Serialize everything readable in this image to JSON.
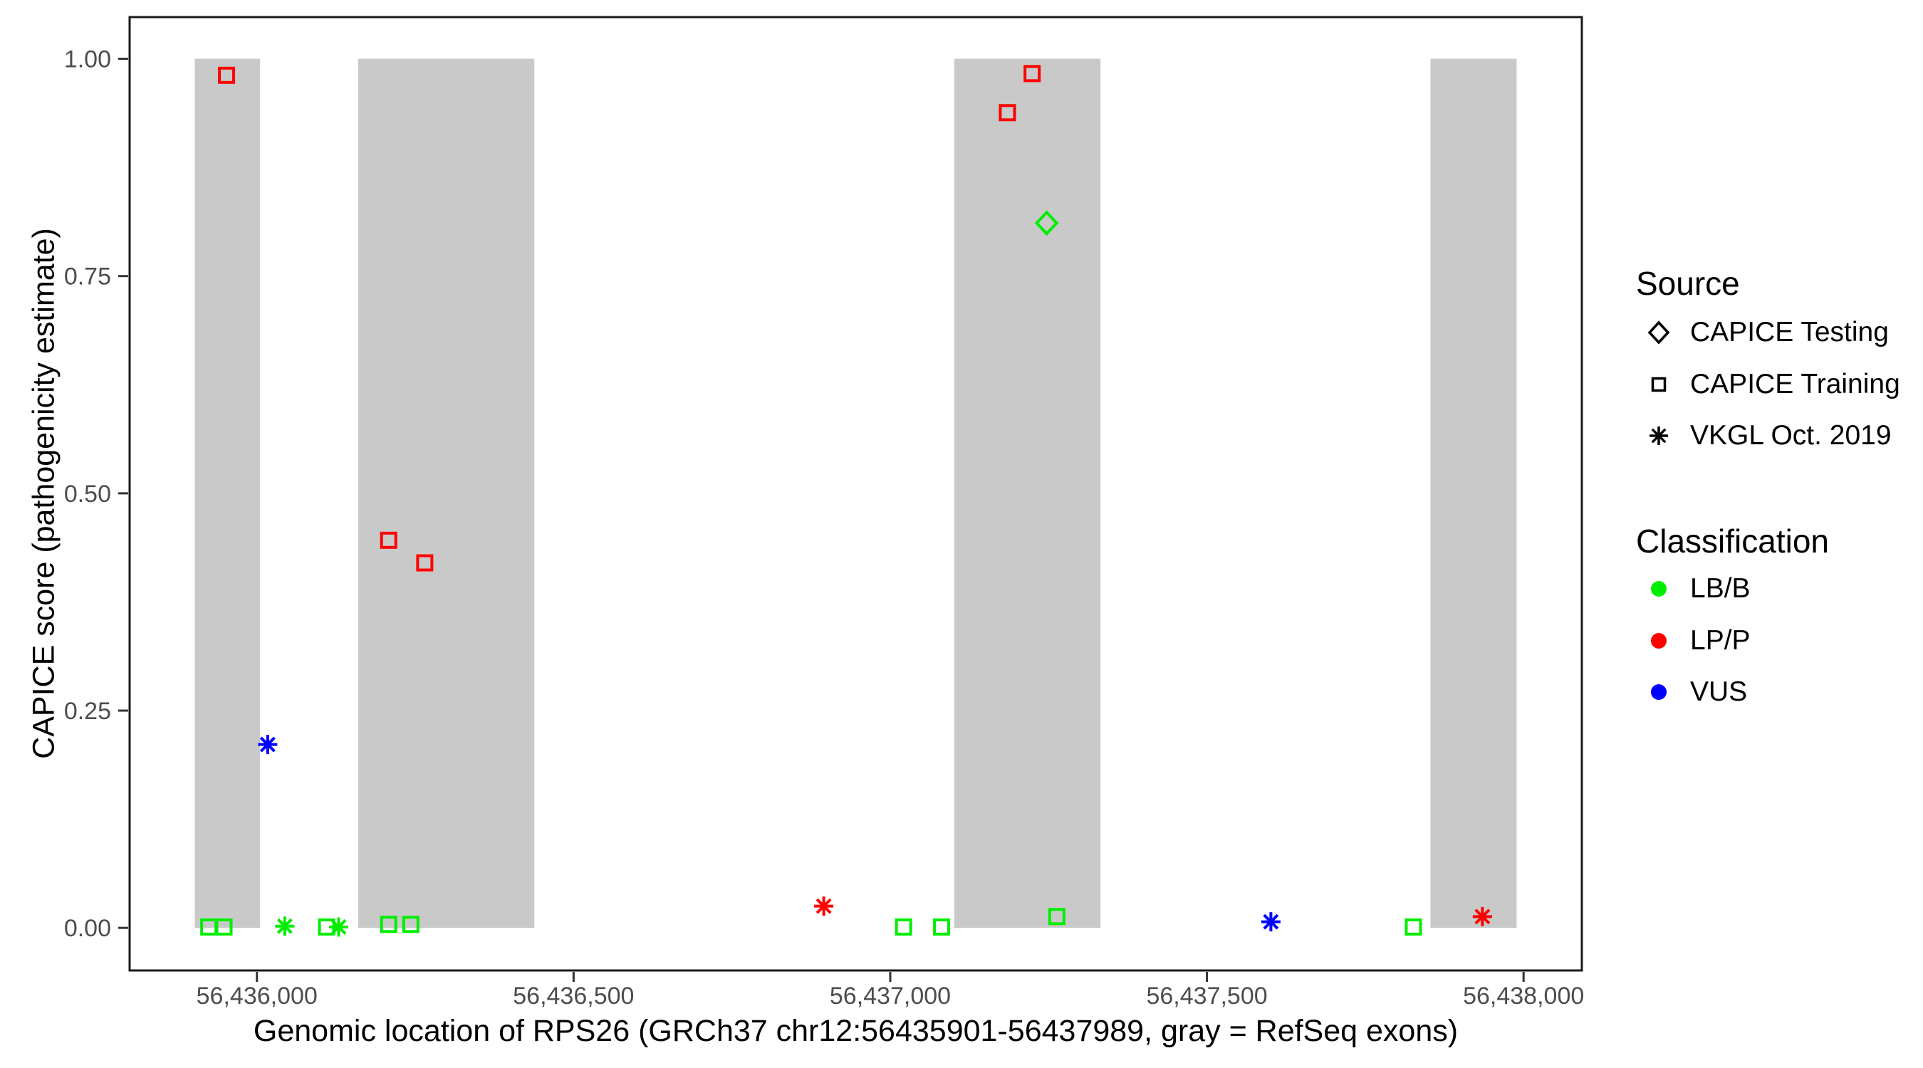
{
  "chart_data": {
    "type": "scatter",
    "title": "",
    "xlabel": "Genomic location of RPS26 (GRCh37 chr12:56435901-56437989, gray = RefSeq exons)",
    "ylabel": "CAPICE score (pathogenicity estimate)",
    "grid": "off",
    "legend_position": "right",
    "panel": {
      "border_color": "#1a1a1a",
      "border_width": 3,
      "background": "#ffffff"
    },
    "exon_color": "#c9c9c9",
    "tick_color": "#333333",
    "tick_label_color": "#4d4d4d",
    "x_axis": {
      "min": 56435799,
      "max": 56438092,
      "ticks": [
        {
          "value": 56436000,
          "label": "56,436,000"
        },
        {
          "value": 56436500,
          "label": "56,436,500"
        },
        {
          "value": 56437000,
          "label": "56,437,000"
        },
        {
          "value": 56437500,
          "label": "56,437,500"
        },
        {
          "value": 56438000,
          "label": "56,438,000"
        }
      ]
    },
    "y_axis": {
      "min": -0.049,
      "max": 1.048,
      "ticks": [
        {
          "value": 0.0,
          "label": "0.00"
        },
        {
          "value": 0.25,
          "label": "0.25"
        },
        {
          "value": 0.5,
          "label": "0.50"
        },
        {
          "value": 0.75,
          "label": "0.75"
        },
        {
          "value": 1.0,
          "label": "1.00"
        }
      ]
    },
    "exons": [
      {
        "start": 56435902,
        "end": 56436005
      },
      {
        "start": 56436160,
        "end": 56436438
      },
      {
        "start": 56437101,
        "end": 56437332
      },
      {
        "start": 56437853,
        "end": 56437989
      }
    ],
    "shape_by_source": {
      "CAPICE Testing": "diamond",
      "CAPICE Training": "square",
      "VKGL Oct. 2019": "asterisk"
    },
    "color_by_classification": {
      "LB/B": "#00ee00",
      "LP/P": "#ff0000",
      "VUS": "#0000ff"
    },
    "points": [
      {
        "pos": 56435924,
        "score": 0.001,
        "source": "CAPICE Training",
        "classification": "LB/B"
      },
      {
        "pos": 56435948,
        "score": 0.001,
        "source": "CAPICE Training",
        "classification": "LB/B"
      },
      {
        "pos": 56435952,
        "score": 0.981,
        "source": "CAPICE Training",
        "classification": "LP/P"
      },
      {
        "pos": 56436017,
        "score": 0.211,
        "source": "VKGL Oct. 2019",
        "classification": "VUS"
      },
      {
        "pos": 56436044,
        "score": 0.002,
        "source": "VKGL Oct. 2019",
        "classification": "LB/B"
      },
      {
        "pos": 56436110,
        "score": 0.001,
        "source": "CAPICE Training",
        "classification": "LB/B"
      },
      {
        "pos": 56436129,
        "score": 0.001,
        "source": "VKGL Oct. 2019",
        "classification": "LB/B"
      },
      {
        "pos": 56436208,
        "score": 0.446,
        "source": "CAPICE Training",
        "classification": "LP/P"
      },
      {
        "pos": 56436208,
        "score": 0.004,
        "source": "CAPICE Training",
        "classification": "LB/B"
      },
      {
        "pos": 56436243,
        "score": 0.004,
        "source": "CAPICE Training",
        "classification": "LB/B"
      },
      {
        "pos": 56436265,
        "score": 0.42,
        "source": "CAPICE Training",
        "classification": "LP/P"
      },
      {
        "pos": 56436895,
        "score": 0.025,
        "source": "VKGL Oct. 2019",
        "classification": "LP/P"
      },
      {
        "pos": 56437021,
        "score": 0.001,
        "source": "CAPICE Training",
        "classification": "LB/B"
      },
      {
        "pos": 56437081,
        "score": 0.001,
        "source": "CAPICE Training",
        "classification": "LB/B"
      },
      {
        "pos": 56437185,
        "score": 0.938,
        "source": "CAPICE Training",
        "classification": "LP/P"
      },
      {
        "pos": 56437224,
        "score": 0.983,
        "source": "CAPICE Training",
        "classification": "LP/P"
      },
      {
        "pos": 56437247,
        "score": 0.811,
        "source": "CAPICE Testing",
        "classification": "LB/B"
      },
      {
        "pos": 56437263,
        "score": 0.013,
        "source": "CAPICE Training",
        "classification": "LB/B"
      },
      {
        "pos": 56437601,
        "score": 0.007,
        "source": "VKGL Oct. 2019",
        "classification": "VUS"
      },
      {
        "pos": 56437826,
        "score": 0.001,
        "source": "CAPICE Training",
        "classification": "LB/B"
      },
      {
        "pos": 56437935,
        "score": 0.013,
        "source": "VKGL Oct. 2019",
        "classification": "LP/P"
      }
    ]
  },
  "legend": {
    "source": {
      "title": "Source",
      "items": [
        {
          "label": "CAPICE Testing",
          "shape": "diamond"
        },
        {
          "label": "CAPICE Training",
          "shape": "square"
        },
        {
          "label": "VKGL Oct. 2019",
          "shape": "asterisk"
        }
      ]
    },
    "classification": {
      "title": "Classification",
      "items": [
        {
          "label": "LB/B",
          "color": "#00ee00"
        },
        {
          "label": "LP/P",
          "color": "#ff0000"
        },
        {
          "label": "VUS",
          "color": "#0000ff"
        }
      ]
    }
  }
}
